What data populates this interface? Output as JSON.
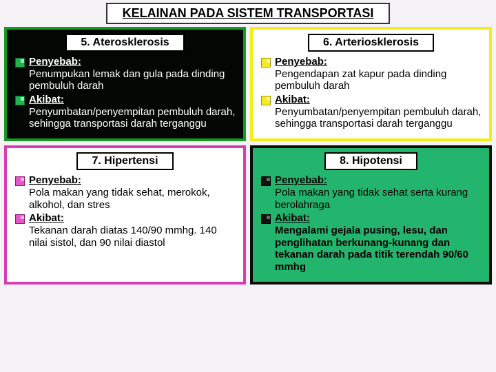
{
  "main_title": "KELAINAN PADA SISTEM TRANSPORTASI",
  "cards": [
    {
      "title": "5. Aterosklerosis",
      "border_color": "#149b22",
      "bg_color": "#040604",
      "text_color": "#ffffff",
      "bullet_style": "b-green",
      "points": [
        {
          "label": "Penyebab:",
          "text": "Penumpukan lemak dan gula pada dinding pembuluh darah",
          "bold": false
        },
        {
          "label": "Akibat:",
          "text": "Penyumbatan/penyempitan pembuluh darah, sehingga transportasi darah terganggu",
          "bold": false
        }
      ]
    },
    {
      "title": "6. Arteriosklerosis",
      "border_color": "#f2ee16",
      "bg_color": "#ffffff",
      "text_color": "#000000",
      "bullet_style": "b-yellow",
      "points": [
        {
          "label": "Penyebab:",
          "text": "Pengendapan zat kapur pada dinding pembuluh darah",
          "bold": false
        },
        {
          "label": "Akibat:",
          "text": "Penyumbatan/penyempitan pembuluh darah, sehingga transportasi darah terganggu",
          "bold": false
        }
      ]
    },
    {
      "title": "7. Hipertensi",
      "border_color": "#d63cb5",
      "bg_color": "#ffffff",
      "text_color": "#000000",
      "bullet_style": "b-pink",
      "points": [
        {
          "label": "Penyebab:",
          "text": "Pola makan yang tidak sehat, merokok, alkohol, dan stres",
          "bold": false
        },
        {
          "label": "Akibat:",
          "text": "Tekanan darah diatas 140/90 mmhg. 140 nilai sistol, dan 90 nilai diastol",
          "bold": false
        }
      ]
    },
    {
      "title": "8. Hipotensi",
      "border_color": "#0a0a0a",
      "bg_color": "#23b46e",
      "text_color": "#000000",
      "bullet_style": "b-black",
      "points": [
        {
          "label": "Penyebab:",
          "text": "Pola makan yang tidak sehat serta kurang berolahraga",
          "bold": false
        },
        {
          "label": "Akibat:",
          "text": "Mengalami gejala pusing, lesu, dan penglihatan berkunang-kunang dan tekanan darah pada titik terendah 90/60 mmhg",
          "bold": true
        }
      ]
    }
  ]
}
